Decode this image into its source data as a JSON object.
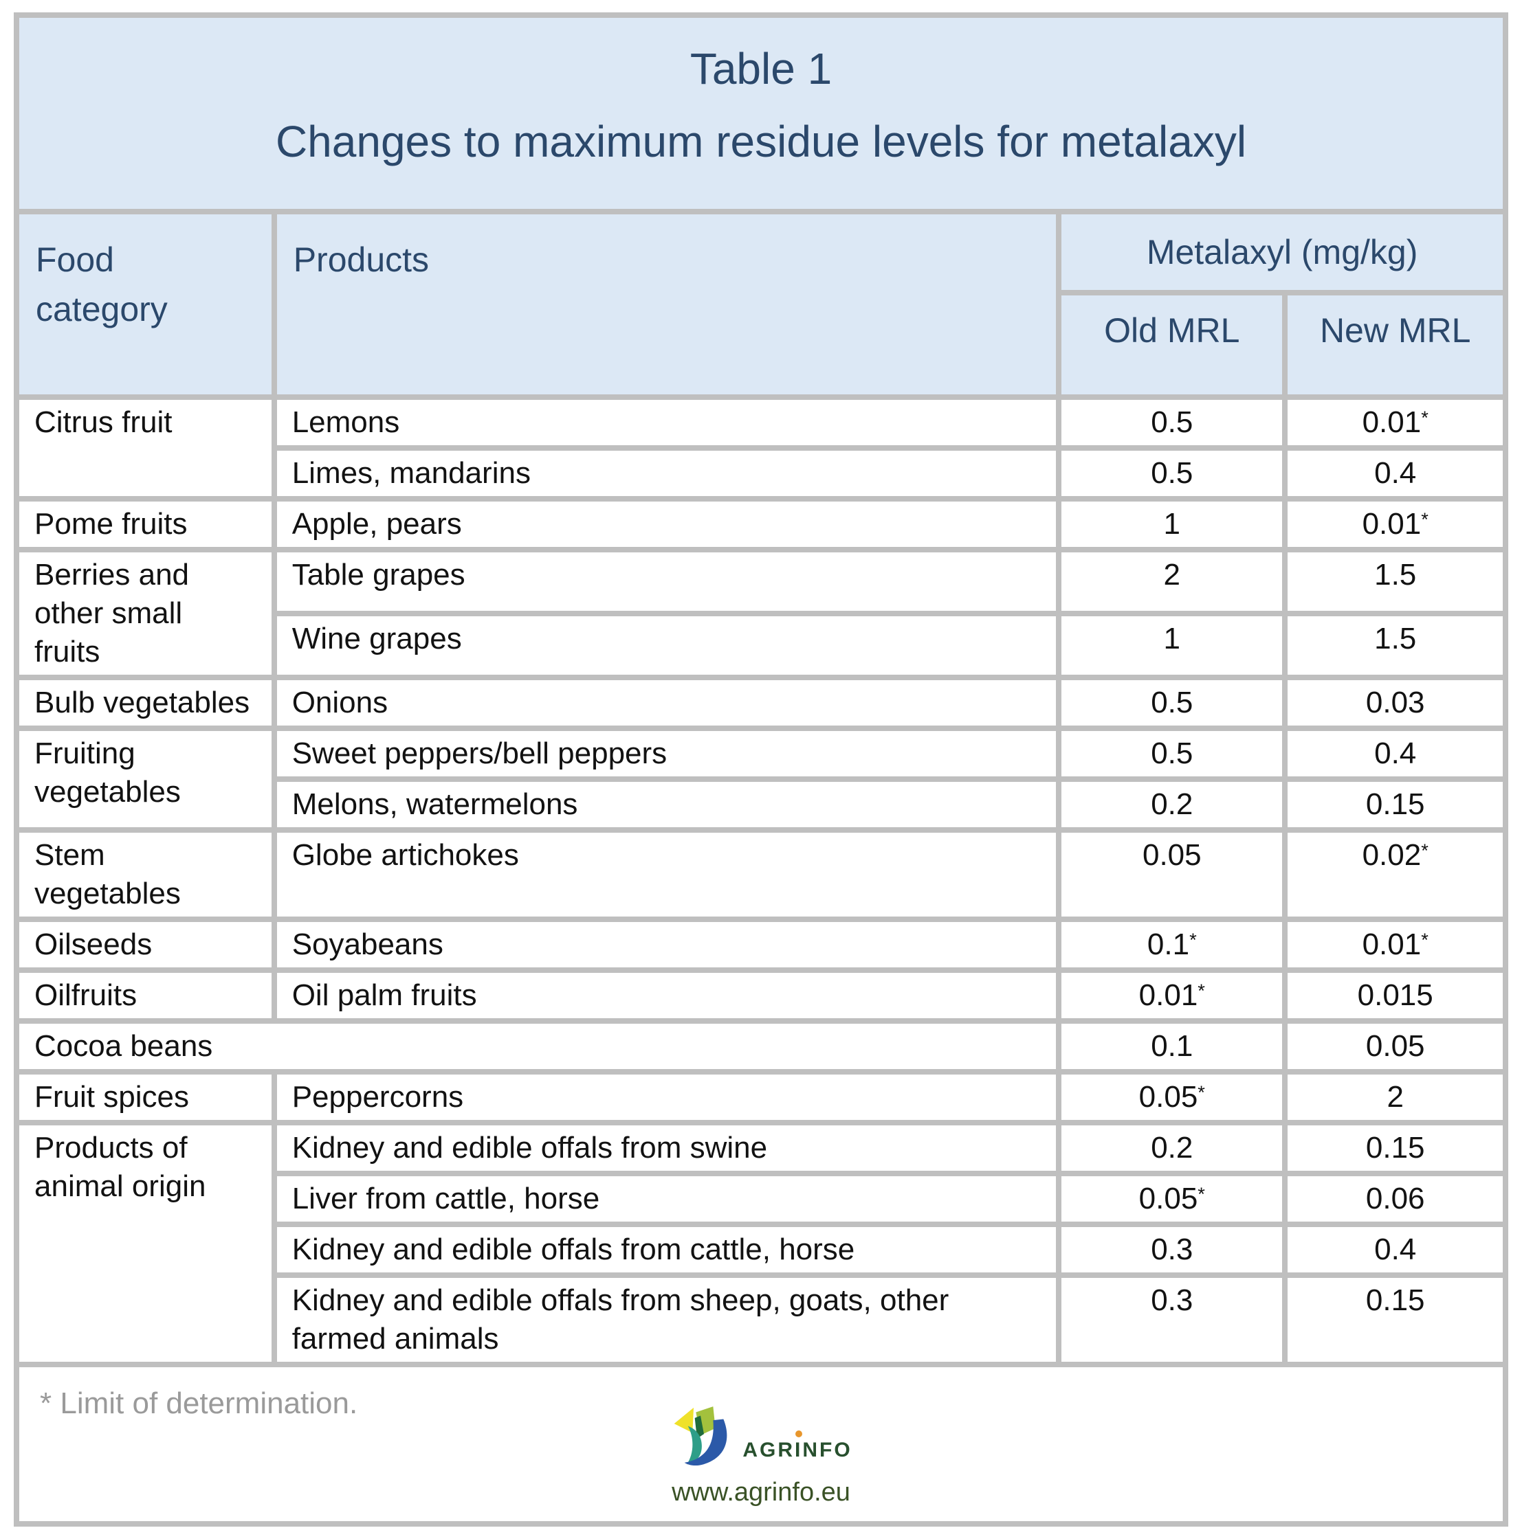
{
  "title": {
    "line1": "Table 1",
    "line2": "Changes to maximum residue levels for metalaxyl"
  },
  "header": {
    "food_category": "Food category",
    "products": "Products",
    "metalaxyl": "Metalaxyl (mg/kg)",
    "old_mrl": "Old MRL",
    "new_mrl": "New MRL"
  },
  "rows": [
    {
      "category": "Citrus fruit",
      "cat_rowspan": 2,
      "product": "Lemons",
      "old": "0.5",
      "new": "0.01*"
    },
    {
      "product": "Limes, mandarins",
      "old": "0.5",
      "new": "0.4"
    },
    {
      "category": "Pome fruits",
      "cat_rowspan": 1,
      "product": "Apple, pears",
      "old": "1",
      "new": "0.01*"
    },
    {
      "category": "Berries and other small fruits",
      "cat_rowspan": 2,
      "product": "Table grapes",
      "old": "2",
      "new": "1.5"
    },
    {
      "product": "Wine grapes",
      "old": "1",
      "new": "1.5"
    },
    {
      "category": "Bulb vegetables",
      "cat_rowspan": 1,
      "product": "Onions",
      "old": "0.5",
      "new": "0.03"
    },
    {
      "category": "Fruiting vegetables",
      "cat_rowspan": 2,
      "product": "Sweet peppers/bell peppers",
      "old": "0.5",
      "new": "0.4"
    },
    {
      "product": "Melons, watermelons",
      "old": "0.2",
      "new": "0.15"
    },
    {
      "category": "Stem vegetables",
      "cat_rowspan": 1,
      "product": "Globe artichokes",
      "old": "0.05",
      "new": "0.02*"
    },
    {
      "category": "Oilseeds",
      "cat_rowspan": 1,
      "product": "Soyabeans",
      "old": "0.1*",
      "new": "0.01*"
    },
    {
      "category": "Oilfruits",
      "cat_rowspan": 1,
      "product": "Oil palm fruits",
      "old": "0.01*",
      "new": "0.015"
    },
    {
      "category": "Cocoa beans",
      "span_products": true,
      "old": "0.1",
      "new": "0.05"
    },
    {
      "category": "Fruit spices",
      "cat_rowspan": 1,
      "product": "Peppercorns",
      "old": "0.05*",
      "new": "2"
    },
    {
      "category": "Products of animal origin",
      "cat_rowspan": 4,
      "product": "Kidney and edible offals from swine",
      "old": "0.2",
      "new": "0.15"
    },
    {
      "product": "Liver from cattle, horse",
      "old": "0.05*",
      "new": "0.06"
    },
    {
      "product": "Kidney and edible offals from cattle, horse",
      "old": "0.3",
      "new": "0.4"
    },
    {
      "product": "Kidney and edible offals from sheep, goats, other farmed animals",
      "old": "0.3",
      "new": "0.15"
    }
  ],
  "footnote": "* Limit of determination.",
  "logo": {
    "name": "AGRINFO",
    "name_part1": "AGR",
    "name_part2": "I",
    "name_part3": "NFO",
    "url": "www.agrinfo.eu"
  },
  "colors": {
    "header_bg": "#dce8f5",
    "header_text": "#2b486b",
    "grid_border": "#bfbfbf",
    "body_text": "#121212",
    "footnote_text": "#9a9a9a",
    "logo_dark_green": "#28502e",
    "logo_url_green": "#3a5226",
    "logo_yellow": "#efe12a",
    "logo_lime": "#a3c13d",
    "logo_leaf_dark": "#1f6b3c",
    "logo_teal": "#2e9e88",
    "logo_blue": "#2b59a8",
    "logo_dot_orange": "#e8962c"
  }
}
